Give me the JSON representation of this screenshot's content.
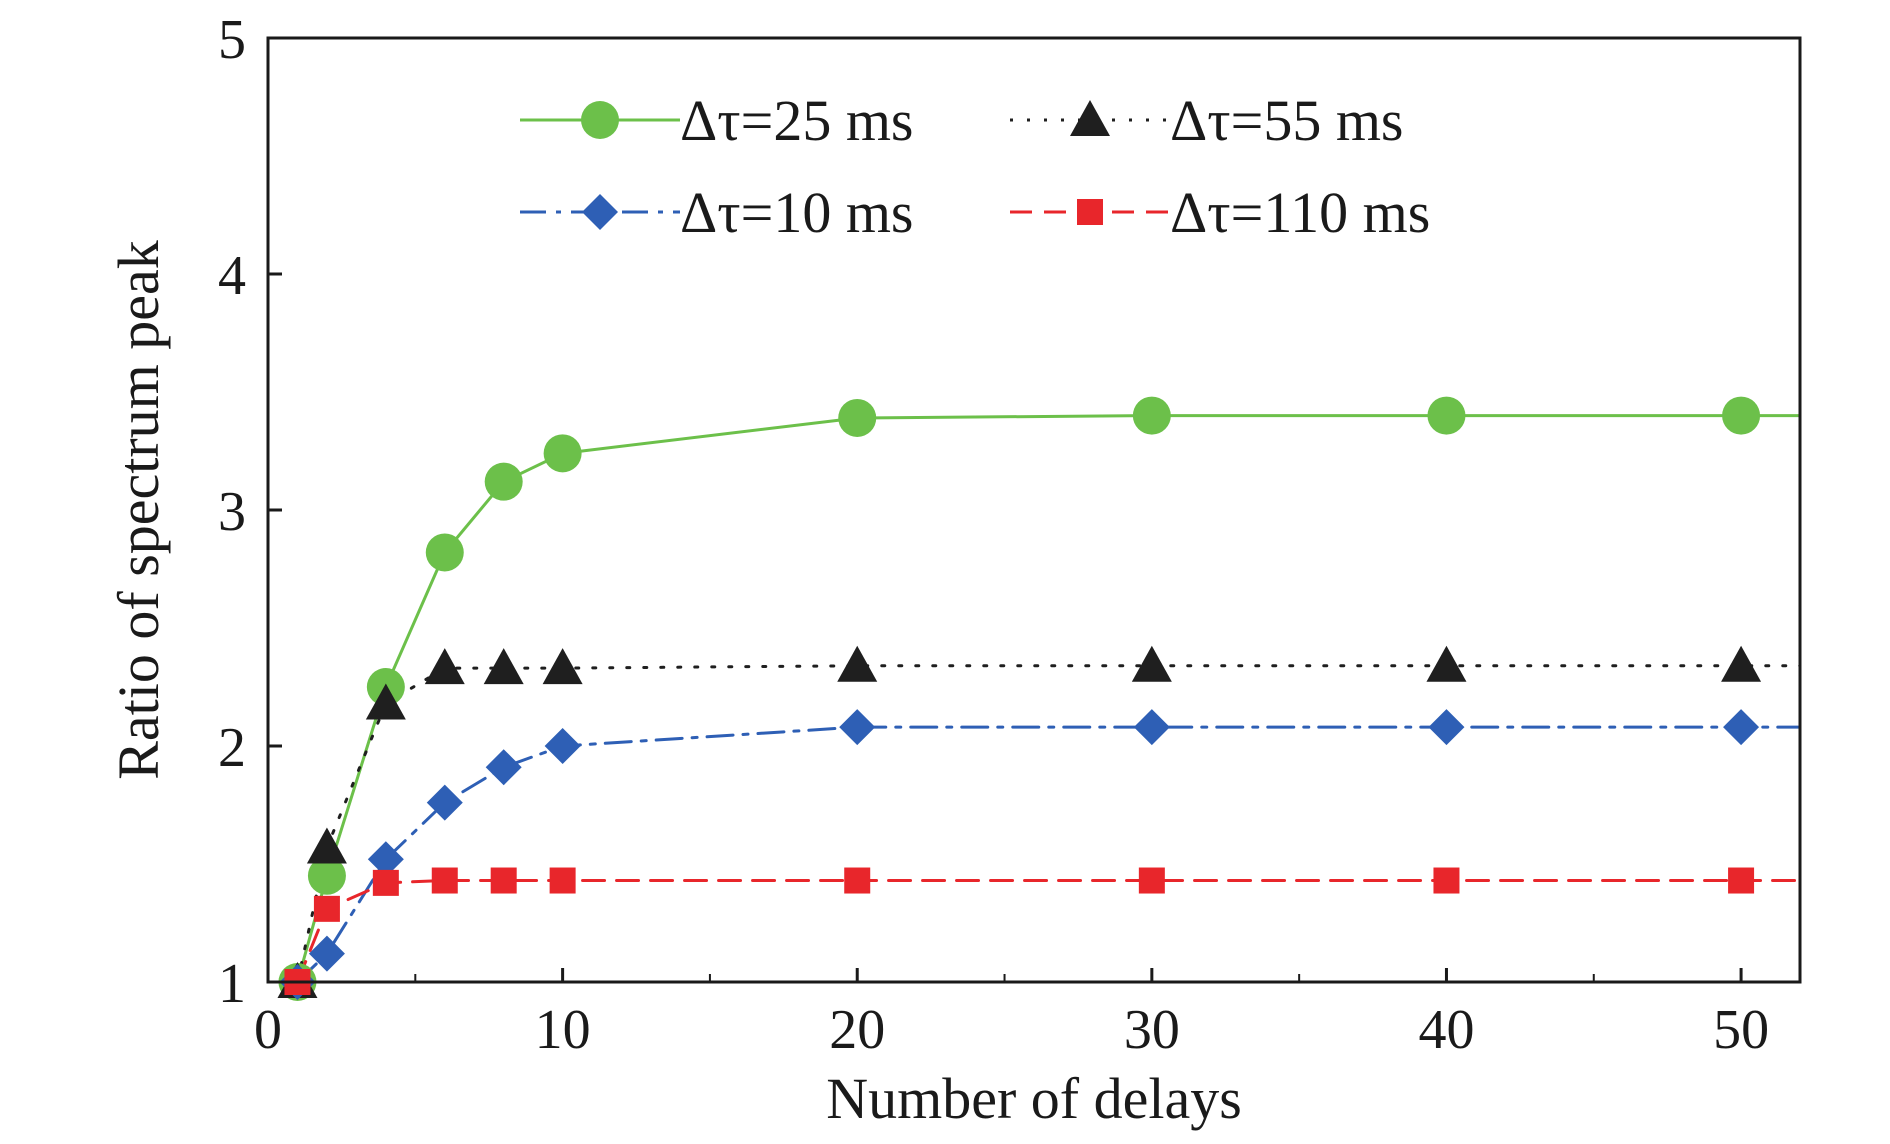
{
  "chart_data": {
    "type": "line",
    "xlabel": "Number of delays",
    "ylabel": "Ratio of spectrum peak",
    "xlim": [
      0,
      52
    ],
    "ylim": [
      1,
      5
    ],
    "x_ticks": [
      "0",
      "10",
      "20",
      "30",
      "40",
      "50"
    ],
    "y_ticks": [
      "1",
      "2",
      "3",
      "4",
      "5"
    ],
    "grid": false,
    "legend_position": "top",
    "series": [
      {
        "name": "Δτ=25 ms",
        "color": "#6cc04a",
        "line_style": "solid",
        "marker": "circle",
        "x": [
          1,
          2,
          4,
          6,
          8,
          10,
          20,
          30,
          40,
          50
        ],
        "y": [
          1.0,
          1.45,
          2.25,
          2.82,
          3.12,
          3.24,
          3.39,
          3.4,
          3.4,
          3.4
        ],
        "extends_to_edge": true
      },
      {
        "name": "Δτ=55 ms",
        "color": "#1f1f1f",
        "line_style": "dotted",
        "marker": "triangle",
        "x": [
          1,
          2,
          4,
          6,
          8,
          10,
          20,
          30,
          40,
          50
        ],
        "y": [
          1.0,
          1.57,
          2.18,
          2.33,
          2.33,
          2.33,
          2.34,
          2.34,
          2.34,
          2.34
        ],
        "extends_to_edge": true
      },
      {
        "name": "Δτ=10 ms",
        "color": "#2e5fb5",
        "line_style": "dashdot",
        "marker": "diamond",
        "x": [
          1,
          2,
          4,
          6,
          8,
          10,
          20,
          30,
          40,
          50
        ],
        "y": [
          1.0,
          1.12,
          1.52,
          1.76,
          1.91,
          2.0,
          2.08,
          2.08,
          2.08,
          2.08
        ],
        "extends_to_edge": true
      },
      {
        "name": "Δτ=110 ms",
        "color": "#e8262b",
        "line_style": "dashed",
        "marker": "square",
        "x": [
          1,
          2,
          4,
          6,
          8,
          10,
          20,
          30,
          40,
          50
        ],
        "y": [
          1.0,
          1.31,
          1.42,
          1.43,
          1.43,
          1.43,
          1.43,
          1.43,
          1.43,
          1.43
        ],
        "extends_to_edge": true
      }
    ]
  }
}
